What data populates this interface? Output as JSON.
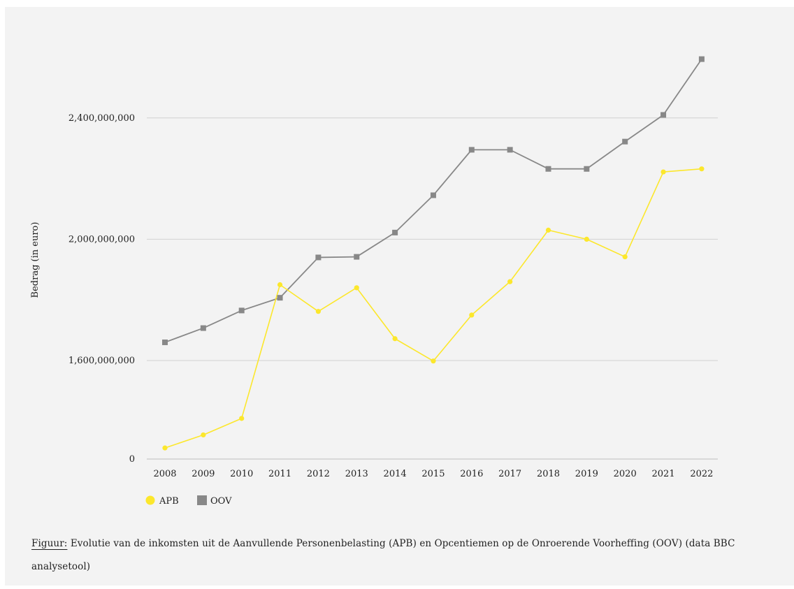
{
  "chart_data": {
    "type": "line",
    "categories": [
      "2008",
      "2009",
      "2010",
      "2011",
      "2012",
      "2013",
      "2014",
      "2015",
      "2016",
      "2017",
      "2018",
      "2019",
      "2020",
      "2021",
      "2022"
    ],
    "y_ticks": [
      {
        "label": "0",
        "value": 0
      },
      {
        "label": "1,600,000,000",
        "value": 1600000000
      },
      {
        "label": "2,000,000,000",
        "value": 2000000000
      },
      {
        "label": "2,400,000,000",
        "value": 2400000000
      }
    ],
    "y_scale_note": "broken axis between 0 and 1,600,000,000",
    "ylabel": "Bedrag (in euro)",
    "xlabel": "",
    "series": [
      {
        "name": "APB",
        "color": "#fce72c",
        "marker": "circle",
        "values": [
          1245000000,
          1298000000,
          1365000000,
          1850000000,
          1762000000,
          1840000000,
          1672000000,
          1598000000,
          1750000000,
          1860000000,
          2030000000,
          2000000000,
          1942000000,
          2222000000,
          2232000000
        ]
      },
      {
        "name": "OOV",
        "color": "#888888",
        "marker": "square",
        "values": [
          1660000000,
          1707000000,
          1765000000,
          1807000000,
          1940000000,
          1942000000,
          2022000000,
          2145000000,
          2295000000,
          2295000000,
          2232000000,
          2232000000,
          2322000000,
          2410000000,
          2594000000
        ]
      }
    ],
    "legend": {
      "placement": "bottom-left"
    },
    "grid": "horizontal"
  },
  "caption": {
    "prefix": "Figuur:",
    "text": " Evolutie van de inkomsten uit de Aanvullende Personenbelasting (APB) en Opcentiemen op de Onroerende Voorheffing (OOV) (data BBC analysetool)"
  }
}
